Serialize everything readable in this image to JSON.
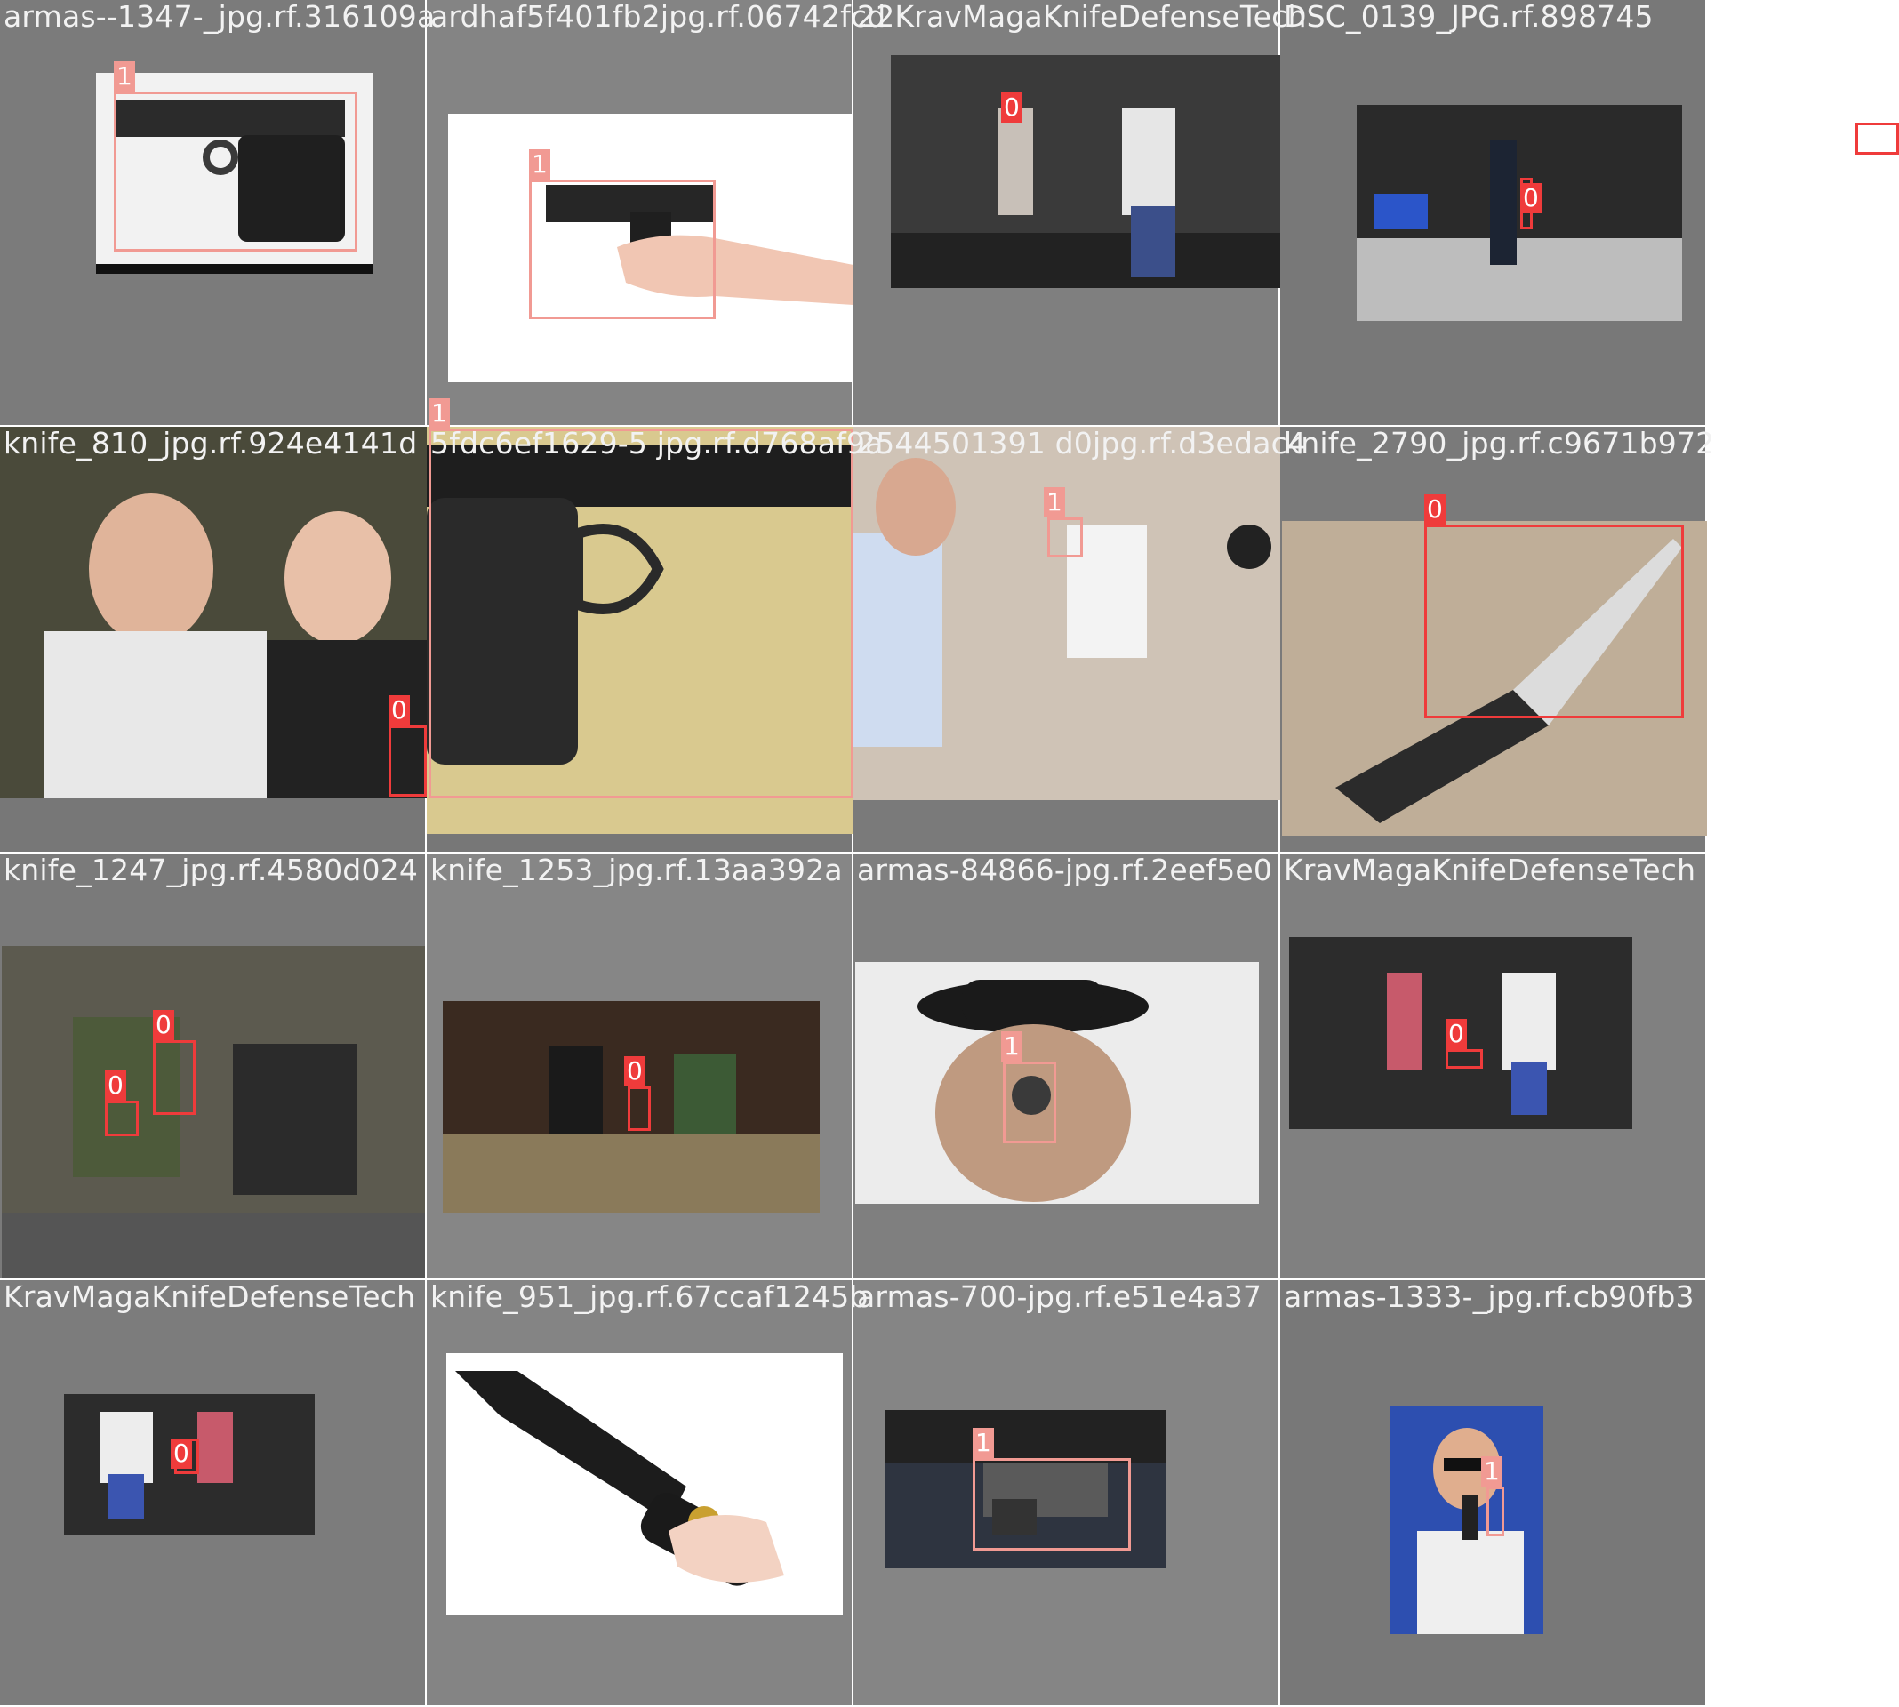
{
  "mosaic": {
    "tiles": [
      {
        "filename": "armas--1347-_jpg.rf.316109a",
        "overlap_label": "ardhaf5f401fb2jpg.rf.06742fcd"
      },
      {
        "filename": "ardhaf5f401fb2jpg.rf.06742fcd",
        "overlap_label": "22KravMagaKnifeDefenseTech"
      },
      {
        "filename": "22KravMagaKnifeDefenseTech",
        "overlap_label": "DSC_0139_JPG.rf.898745"
      },
      {
        "filename": "DSC_0139_JPG.rf.898745",
        "overlap_label": ""
      },
      {
        "filename": "knife_810_jpg.rf.924e4141d",
        "overlap_label": "5fdc6ef1629-5 jpg.rf.d768af9a"
      },
      {
        "filename": "5fdc6ef1629-5 jpg.rf.d768af9a",
        "overlap_label": "2544501391 d0"
      },
      {
        "filename": "2544501391 d0jpg.rf.d3edac4",
        "overlap_label": "knife_2790_jpg.rf.c9671b972"
      },
      {
        "filename": "knife_2790_jpg.rf.c9671b972",
        "overlap_label": ""
      },
      {
        "filename": "knife_1247_jpg.rf.4580d024",
        "overlap_label": "knife_1253_jpg.rf.13aa392a"
      },
      {
        "filename": "knife_1253_jpg.rf.13aa392a",
        "overlap_label": "armas-84866-jpg.rf.2eef5e0"
      },
      {
        "filename": "armas-84866-jpg.rf.2eef5e0",
        "overlap_label": "KravMagaKnifeDefenseTech"
      },
      {
        "filename": "KravMagaKnifeDefenseTech",
        "overlap_label": ""
      },
      {
        "filename": "KravMagaKnifeDefenseTech",
        "overlap_label": "knife_951_jpg.rf.67ccaf1245b"
      },
      {
        "filename": "knife_951_jpg.rf.67ccaf1245b",
        "overlap_label": "armas-700-jpg.rf.e51e4a37"
      },
      {
        "filename": "armas-700-jpg.rf.e51e4a37",
        "overlap_label": "armas-1333-_jpg.rf.cb90fb3"
      },
      {
        "filename": "armas-1333-_jpg.rf.cb90fb3",
        "overlap_label": ""
      }
    ],
    "class_labels": [
      "0",
      "1"
    ],
    "colors": {
      "class0": "#ef3b3b",
      "class1": "#f19a93",
      "tile_bg": "#737373"
    }
  }
}
